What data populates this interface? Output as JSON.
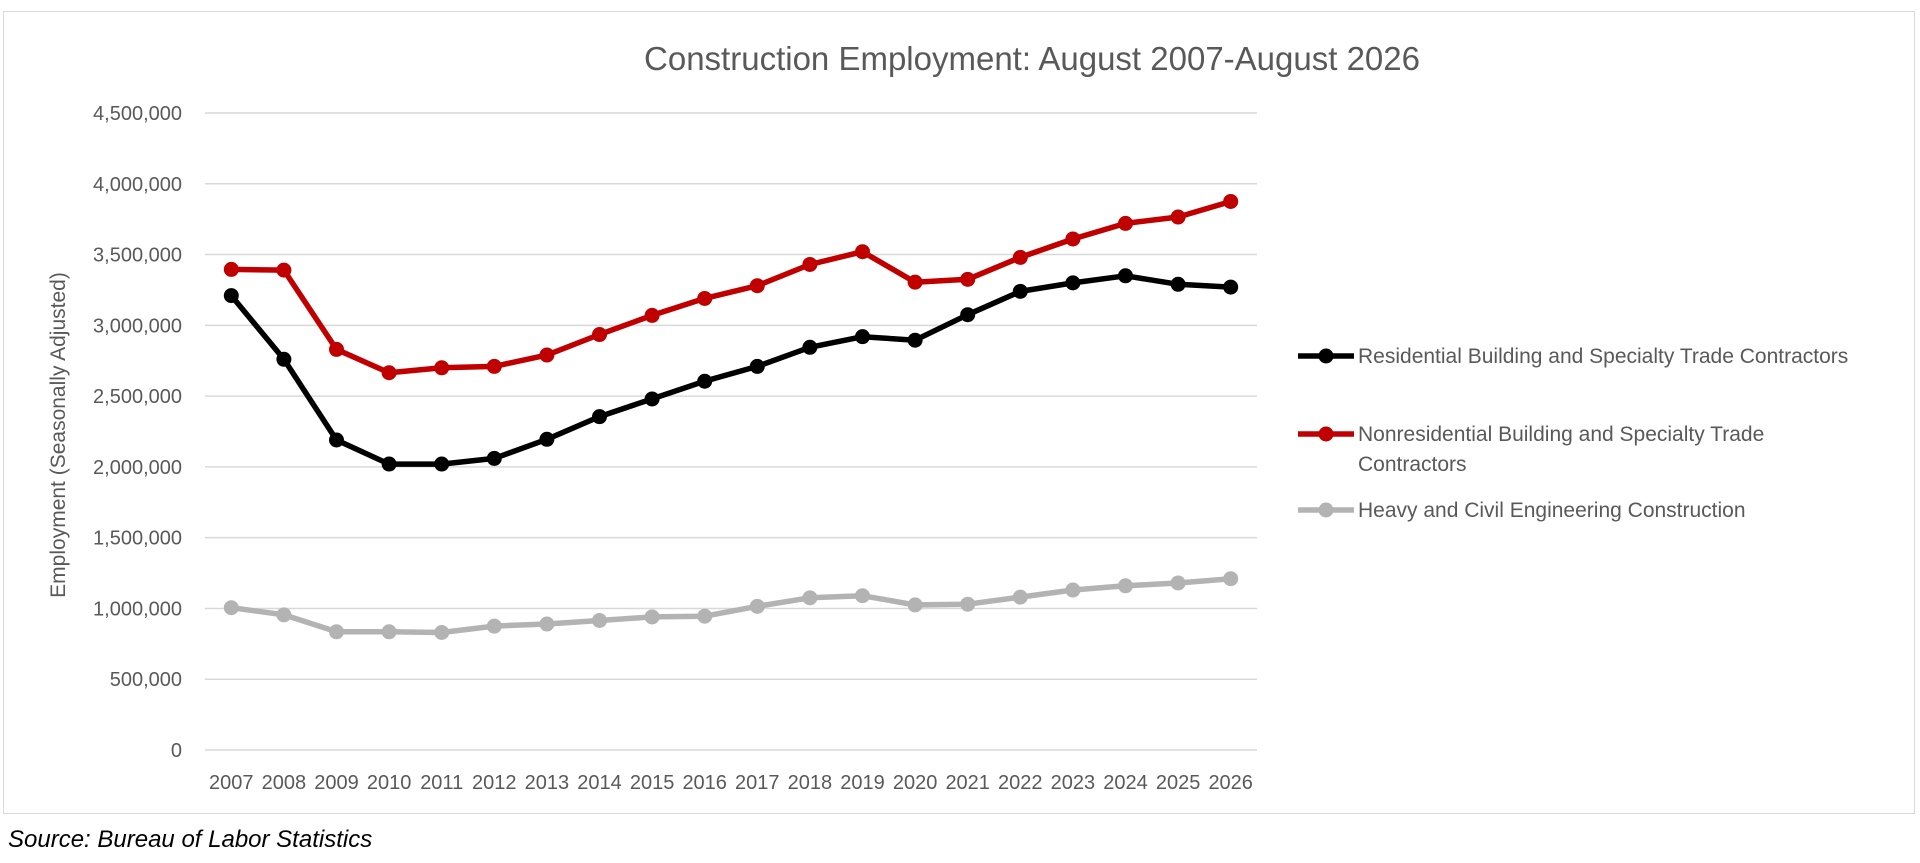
{
  "chart_data": {
    "type": "line",
    "title": "Construction Employment: August 2007-August 2026",
    "xlabel": "",
    "ylabel": "Employment (Seasonally Adjusted)",
    "ylim": [
      0,
      4500000
    ],
    "yticks": [
      "0",
      "500,000",
      "1,000,000",
      "1,500,000",
      "2,000,000",
      "2,500,000",
      "3,000,000",
      "3,500,000",
      "4,000,000",
      "4,500,000"
    ],
    "grid": true,
    "legend_position": "right",
    "categories": [
      "2007",
      "2008",
      "2009",
      "2010",
      "2011",
      "2012",
      "2013",
      "2014",
      "2015",
      "2016",
      "2017",
      "2018",
      "2019",
      "2020",
      "2021",
      "2022",
      "2023",
      "2024",
      "2025",
      "2026"
    ],
    "series": [
      {
        "name": "Residential Building and Specialty Trade Contractors",
        "color": "#000000",
        "values": [
          3210000,
          2760000,
          2190000,
          2020000,
          2020000,
          2060000,
          2195000,
          2355000,
          2480000,
          2605000,
          2710000,
          2845000,
          2920000,
          2895000,
          3075000,
          3240000,
          3300000,
          3350000,
          3290000,
          3270000
        ]
      },
      {
        "name": "Nonresidential Building and Specialty Trade Contractors",
        "color": "#c00000",
        "values": [
          3395000,
          3390000,
          2830000,
          2665000,
          2700000,
          2710000,
          2790000,
          2935000,
          3070000,
          3190000,
          3280000,
          3430000,
          3520000,
          3305000,
          3325000,
          3480000,
          3610000,
          3720000,
          3765000,
          3875000
        ]
      },
      {
        "name": "Heavy and Civil Engineering Construction",
        "color": "#b3b3b3",
        "values": [
          1005000,
          955000,
          835000,
          835000,
          830000,
          875000,
          890000,
          915000,
          940000,
          945000,
          1015000,
          1075000,
          1090000,
          1025000,
          1030000,
          1080000,
          1130000,
          1160000,
          1180000,
          1210000
        ]
      }
    ]
  },
  "source_note": "Source: Bureau of Labor Statistics"
}
